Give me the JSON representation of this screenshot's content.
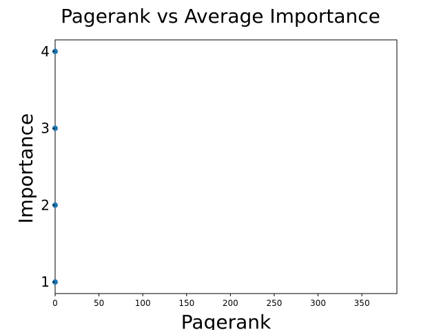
{
  "chart_data": {
    "type": "scatter",
    "title": "Pagerank vs Average Importance",
    "xlabel": "Pagerank",
    "ylabel": "Importance",
    "xlim": [
      0,
      390
    ],
    "ylim": [
      0.85,
      4.15
    ],
    "xticks": [
      0,
      50,
      100,
      150,
      200,
      250,
      300,
      350
    ],
    "yticks": [
      1,
      2,
      3,
      4
    ],
    "grid": false,
    "marker_color": "#1f77b4",
    "points": [
      {
        "x": 0,
        "y": 1
      },
      {
        "x": 0,
        "y": 2
      },
      {
        "x": 0,
        "y": 3
      },
      {
        "x": 0,
        "y": 4
      }
    ]
  }
}
